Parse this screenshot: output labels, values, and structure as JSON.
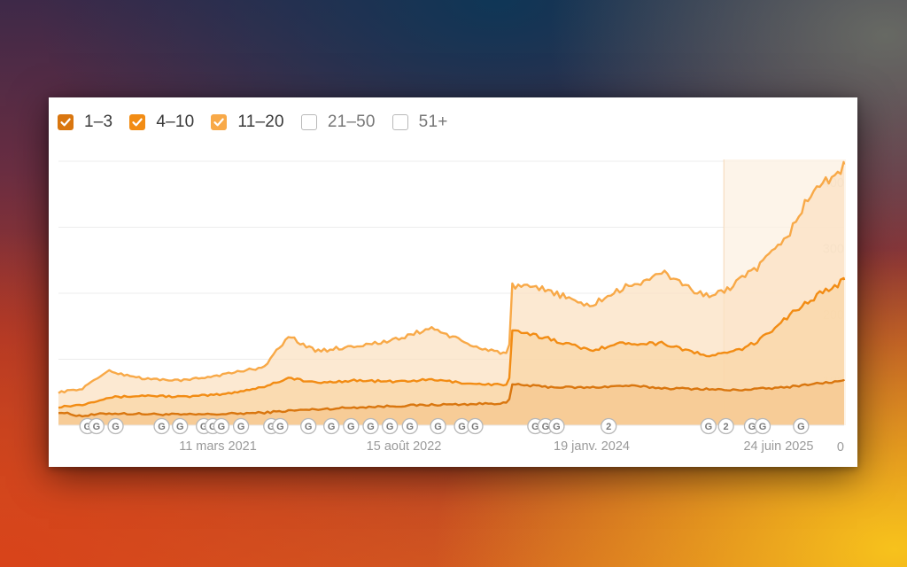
{
  "legend": [
    {
      "label": "1–3",
      "checked": true,
      "color": "#d9760f"
    },
    {
      "label": "4–10",
      "checked": true,
      "color": "#f28c14"
    },
    {
      "label": "11–20",
      "checked": true,
      "color": "#f8a948"
    },
    {
      "label": "21–50",
      "checked": false,
      "color": "#b9b9b9"
    },
    {
      "label": "51+",
      "checked": false,
      "color": "#b9b9b9"
    }
  ],
  "chart_data": {
    "type": "area",
    "stacked": false,
    "x_ticks": [
      "11 mars 2021",
      "15 août 2022",
      "19 janv. 2024",
      "24 juin 2025"
    ],
    "y_ticks": [
      0,
      100,
      200,
      300,
      400
    ],
    "ylim": [
      0,
      400
    ],
    "xlim": [
      "2020-06-08",
      "2025-06-24"
    ],
    "grid": true,
    "highlight_start": "2024-09-15",
    "series": [
      {
        "name": "1–3",
        "color": "#d9760f",
        "points": [
          [
            "2020-06-08",
            20
          ],
          [
            "2020-08-01",
            14
          ],
          [
            "2020-10-01",
            18
          ],
          [
            "2021-01-01",
            17
          ],
          [
            "2021-04-01",
            16
          ],
          [
            "2021-07-01",
            17
          ],
          [
            "2021-10-01",
            19
          ],
          [
            "2021-12-01",
            22
          ],
          [
            "2022-02-01",
            24
          ],
          [
            "2022-05-01",
            27
          ],
          [
            "2022-08-01",
            29
          ],
          [
            "2022-11-01",
            31
          ],
          [
            "2023-02-01",
            32
          ],
          [
            "2023-04-30",
            34
          ],
          [
            "2023-05-07",
            62
          ],
          [
            "2023-08-01",
            58
          ],
          [
            "2023-11-01",
            57
          ],
          [
            "2024-02-01",
            60
          ],
          [
            "2024-05-01",
            56
          ],
          [
            "2024-08-01",
            55
          ],
          [
            "2024-10-01",
            53
          ],
          [
            "2024-12-01",
            55
          ],
          [
            "2025-02-01",
            57
          ],
          [
            "2025-04-01",
            62
          ],
          [
            "2025-06-24",
            67
          ]
        ]
      },
      {
        "name": "4–10",
        "color": "#f28c14",
        "points": [
          [
            "2020-06-08",
            28
          ],
          [
            "2020-08-01",
            31
          ],
          [
            "2020-10-01",
            42
          ],
          [
            "2021-01-01",
            45
          ],
          [
            "2021-04-01",
            43
          ],
          [
            "2021-07-01",
            47
          ],
          [
            "2021-10-01",
            58
          ],
          [
            "2021-12-01",
            72
          ],
          [
            "2022-02-01",
            64
          ],
          [
            "2022-05-01",
            68
          ],
          [
            "2022-08-01",
            66
          ],
          [
            "2022-11-01",
            69
          ],
          [
            "2023-02-01",
            63
          ],
          [
            "2023-04-30",
            61
          ],
          [
            "2023-05-07",
            142
          ],
          [
            "2023-08-01",
            132
          ],
          [
            "2023-11-01",
            114
          ],
          [
            "2024-02-01",
            125
          ],
          [
            "2024-05-01",
            124
          ],
          [
            "2024-08-01",
            105
          ],
          [
            "2024-10-01",
            110
          ],
          [
            "2024-12-01",
            125
          ],
          [
            "2025-02-01",
            160
          ],
          [
            "2025-04-01",
            188
          ],
          [
            "2025-06-24",
            220
          ]
        ]
      },
      {
        "name": "11–20",
        "color": "#f8a948",
        "points": [
          [
            "2020-06-08",
            50
          ],
          [
            "2020-08-01",
            55
          ],
          [
            "2020-10-01",
            82
          ],
          [
            "2021-01-01",
            70
          ],
          [
            "2021-04-01",
            68
          ],
          [
            "2021-07-01",
            77
          ],
          [
            "2021-10-01",
            88
          ],
          [
            "2021-12-01",
            135
          ],
          [
            "2022-02-01",
            112
          ],
          [
            "2022-05-01",
            120
          ],
          [
            "2022-08-01",
            128
          ],
          [
            "2022-11-01",
            148
          ],
          [
            "2023-02-01",
            120
          ],
          [
            "2023-04-30",
            108
          ],
          [
            "2023-05-07",
            210
          ],
          [
            "2023-08-01",
            205
          ],
          [
            "2023-11-01",
            180
          ],
          [
            "2024-02-01",
            210
          ],
          [
            "2024-05-01",
            230
          ],
          [
            "2024-08-01",
            195
          ],
          [
            "2024-10-01",
            208
          ],
          [
            "2024-12-01",
            238
          ],
          [
            "2025-02-01",
            275
          ],
          [
            "2025-04-01",
            345
          ],
          [
            "2025-06-24",
            395
          ]
        ]
      }
    ],
    "annotations": [
      {
        "date": "2020-08-15",
        "label": "G"
      },
      {
        "date": "2020-09-05",
        "label": "G"
      },
      {
        "date": "2020-10-20",
        "label": "G"
      },
      {
        "date": "2021-02-05",
        "label": "G"
      },
      {
        "date": "2021-03-20",
        "label": "G"
      },
      {
        "date": "2021-05-15",
        "label": "G"
      },
      {
        "date": "2021-06-05",
        "label": "G"
      },
      {
        "date": "2021-06-25",
        "label": "G"
      },
      {
        "date": "2021-08-10",
        "label": "G"
      },
      {
        "date": "2021-10-20",
        "label": "G"
      },
      {
        "date": "2021-11-10",
        "label": "G"
      },
      {
        "date": "2022-01-15",
        "label": "G"
      },
      {
        "date": "2022-03-10",
        "label": "G"
      },
      {
        "date": "2022-04-25",
        "label": "G"
      },
      {
        "date": "2022-06-10",
        "label": "G"
      },
      {
        "date": "2022-07-25",
        "label": "G"
      },
      {
        "date": "2022-09-10",
        "label": "G"
      },
      {
        "date": "2022-11-15",
        "label": "G"
      },
      {
        "date": "2023-01-10",
        "label": "G"
      },
      {
        "date": "2023-02-10",
        "label": "G"
      },
      {
        "date": "2023-07-01",
        "label": "G"
      },
      {
        "date": "2023-07-25",
        "label": "G"
      },
      {
        "date": "2023-08-20",
        "label": "G"
      },
      {
        "date": "2023-12-20",
        "label": "2"
      },
      {
        "date": "2024-08-10",
        "label": "G"
      },
      {
        "date": "2024-09-20",
        "label": "2"
      },
      {
        "date": "2024-11-20",
        "label": "G"
      },
      {
        "date": "2024-12-15",
        "label": "G"
      },
      {
        "date": "2025-03-15",
        "label": "G"
      }
    ]
  }
}
